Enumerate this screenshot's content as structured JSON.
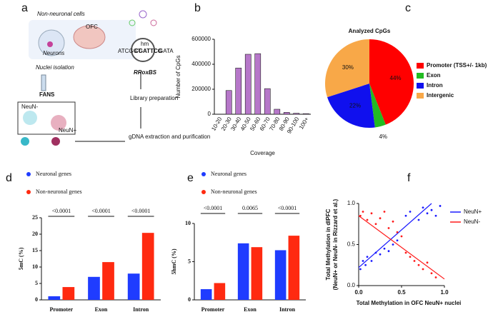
{
  "panel_labels": [
    "a",
    "b",
    "c",
    "d",
    "e",
    "f"
  ],
  "diagram": {
    "cells": "Non-neuronal cells",
    "neurons": "Neurons",
    "region": "OFC",
    "isolation": "Nuclei isolation",
    "sorting": "FANS",
    "neg": "NeuN-",
    "pos": "NeuN+",
    "extraction": "gDNA extraction and purification",
    "library": "Library preparation",
    "method": "RRoxBS",
    "seq_left": "ATCGGT",
    "seq_mid": "CGATTCG",
    "seq_right": "GATA",
    "mark": "hm"
  },
  "chart_data": [
    {
      "type": "bar",
      "categories": [
        "10-20",
        "20-30",
        "30-40",
        "40-50",
        "50-60",
        "60-70",
        "70-80",
        "80-90",
        "90-100",
        "100+"
      ],
      "values": [
        0,
        190000,
        370000,
        480000,
        485000,
        205000,
        40000,
        15000,
        8000,
        5000
      ],
      "color": "#b677c9",
      "xlabel": "Coverage",
      "ylabel": "Number of CpGs",
      "ylim": [
        0,
        600000
      ],
      "yticks": [
        0,
        200000,
        400000,
        600000
      ]
    },
    {
      "type": "pie",
      "title": "Analyzed CpGs",
      "categories": [
        "Promoter (TSS+/- 1kb)",
        "Exon",
        "Intron",
        "Intergenic"
      ],
      "values": [
        44,
        4,
        22,
        30
      ],
      "value_labels": [
        "44%",
        "4%",
        "22%",
        "30%"
      ],
      "colors": [
        "#ff0000",
        "#22bb22",
        "#1010ee",
        "#f8a848"
      ]
    },
    {
      "type": "grouped_bar",
      "categories": [
        "Promoter",
        "Exon",
        "Intron"
      ],
      "ylabel": "5mC (%)",
      "series": [
        {
          "name": "Neuronal genes",
          "color": "#1f3cff",
          "values": [
            1.1,
            7.0,
            8.0
          ]
        },
        {
          "name": "Non-neuronal genes",
          "color": "#ff2a10",
          "values": [
            3.9,
            11.5,
            20.4
          ]
        }
      ],
      "annotations": [
        "<0.0001",
        "<0.0001",
        "<0.0001"
      ],
      "ylim": [
        0,
        25
      ],
      "yticks": [
        0,
        5,
        10,
        15,
        20,
        25
      ]
    },
    {
      "type": "grouped_bar",
      "categories": [
        "Promoter",
        "Exon",
        "Intron"
      ],
      "ylabel": "5hmC (%)",
      "series": [
        {
          "name": "Neuronal genes",
          "color": "#1f3cff",
          "values": [
            1.4,
            7.4,
            6.5
          ]
        },
        {
          "name": "Non-neuronal genes",
          "color": "#ff2a10",
          "values": [
            2.2,
            6.9,
            8.4
          ]
        }
      ],
      "annotations": [
        "<0.0001",
        "0.0065",
        "<0.0001"
      ],
      "ylim": [
        0,
        10
      ],
      "yticks": [
        0,
        5,
        10
      ]
    },
    {
      "type": "scatter",
      "xlabel": "Total Methylation in OFC NeuN+ nuclei",
      "ylabel": [
        "Total Methylation in dlPFC",
        "(NeuN+ or NeuN- in Rizzard et al.)"
      ],
      "xlim": [
        0,
        1
      ],
      "ylim": [
        0,
        1
      ],
      "xticks": [
        {
          "value": 0,
          "label": "0.0"
        },
        {
          "value": 0.5,
          "label": "0.5"
        },
        {
          "value": 1,
          "label": "1.0"
        }
      ],
      "yticks": [
        {
          "value": 0,
          "label": "0.0"
        },
        {
          "value": 0.5,
          "label": "0.5"
        },
        {
          "value": 1,
          "label": "1.0"
        }
      ],
      "series": [
        {
          "name": "NeuN+",
          "color": "#1a1aff",
          "x": [
            0.02,
            0.05,
            0.08,
            0.1,
            0.15,
            0.2,
            0.25,
            0.3,
            0.35,
            0.4,
            0.45,
            0.55,
            0.6,
            0.7,
            0.75,
            0.8,
            0.85,
            0.9,
            0.95
          ],
          "values": [
            0.2,
            0.3,
            0.25,
            0.35,
            0.3,
            0.4,
            0.38,
            0.45,
            0.42,
            0.5,
            0.55,
            0.85,
            0.9,
            0.8,
            0.95,
            0.88,
            0.92,
            0.85,
            0.97
          ],
          "fit_x": [
            0,
            0.85
          ],
          "fit_y": [
            0.22,
            1.0
          ]
        },
        {
          "name": "NeuN-",
          "color": "#ff1a1a",
          "x": [
            0.02,
            0.05,
            0.1,
            0.15,
            0.2,
            0.25,
            0.3,
            0.35,
            0.4,
            0.45,
            0.5,
            0.55,
            0.6,
            0.65,
            0.7,
            0.75,
            0.8,
            0.85,
            0.9
          ],
          "values": [
            0.85,
            0.9,
            0.8,
            0.88,
            0.75,
            0.82,
            0.9,
            0.7,
            0.78,
            0.65,
            0.6,
            0.4,
            0.35,
            0.3,
            0.25,
            0.2,
            0.28,
            0.15,
            0.1
          ],
          "fit_x": [
            0,
            1
          ],
          "fit_y": [
            0.85,
            0.08
          ]
        }
      ]
    }
  ]
}
